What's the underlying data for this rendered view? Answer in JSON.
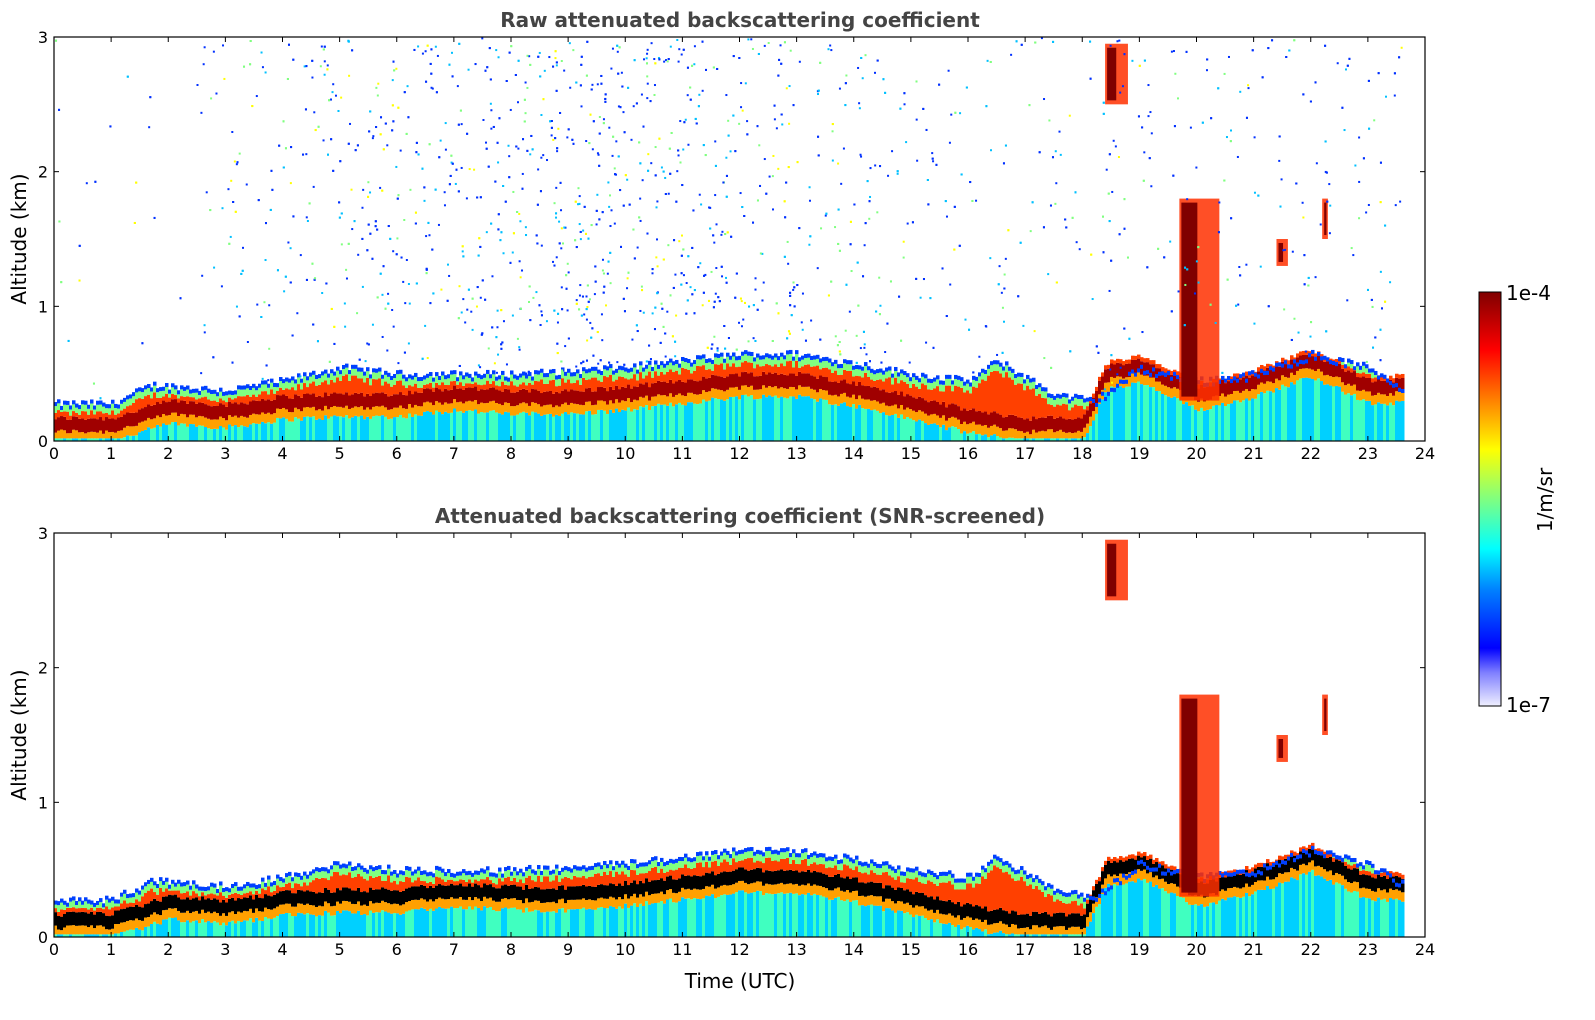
{
  "chart_data": [
    {
      "type": "heatmap",
      "title": "Raw attenuated backscattering coefficient",
      "xlabel": "",
      "ylabel": "Altitude (km)",
      "xlim": [
        0,
        24
      ],
      "ylim": [
        0,
        3
      ],
      "xticks": [
        "0",
        "1",
        "2",
        "3",
        "4",
        "5",
        "6",
        "7",
        "8",
        "9",
        "10",
        "11",
        "12",
        "13",
        "14",
        "15",
        "16",
        "17",
        "18",
        "19",
        "20",
        "21",
        "22",
        "23",
        "24"
      ],
      "yticks": [
        "0",
        "1",
        "2",
        "3"
      ],
      "boundary_layer_top_km": [
        [
          0,
          0.28
        ],
        [
          1,
          0.28
        ],
        [
          1.7,
          0.42
        ],
        [
          3,
          0.38
        ],
        [
          4,
          0.45
        ],
        [
          5,
          0.55
        ],
        [
          6,
          0.5
        ],
        [
          7,
          0.5
        ],
        [
          8,
          0.5
        ],
        [
          9,
          0.52
        ],
        [
          10,
          0.55
        ],
        [
          11,
          0.6
        ],
        [
          12,
          0.65
        ],
        [
          13,
          0.65
        ],
        [
          14,
          0.58
        ],
        [
          15,
          0.5
        ],
        [
          16,
          0.45
        ],
        [
          16.5,
          0.6
        ],
        [
          17.5,
          0.35
        ],
        [
          18.2,
          0.3
        ],
        [
          19,
          0.55
        ],
        [
          20,
          0.45
        ],
        [
          21,
          0.5
        ],
        [
          22,
          0.65
        ],
        [
          23,
          0.55
        ],
        [
          23.6,
          0.4
        ]
      ],
      "peak_layer_km": [
        [
          0,
          0.12
        ],
        [
          1,
          0.12
        ],
        [
          2,
          0.25
        ],
        [
          3,
          0.22
        ],
        [
          4,
          0.28
        ],
        [
          5,
          0.3
        ],
        [
          6,
          0.3
        ],
        [
          7,
          0.35
        ],
        [
          8,
          0.32
        ],
        [
          9,
          0.32
        ],
        [
          10,
          0.35
        ],
        [
          11,
          0.4
        ],
        [
          12,
          0.45
        ],
        [
          13,
          0.45
        ],
        [
          14,
          0.38
        ],
        [
          15,
          0.28
        ],
        [
          16,
          0.18
        ],
        [
          17,
          0.12
        ],
        [
          18,
          0.12
        ],
        [
          18.4,
          0.5
        ],
        [
          19,
          0.55
        ],
        [
          20,
          0.35
        ],
        [
          21,
          0.45
        ],
        [
          22,
          0.6
        ],
        [
          23,
          0.4
        ]
      ],
      "cloud_layers": [
        {
          "t0": 18.4,
          "t1": 18.8,
          "z0": 2.5,
          "z1": 2.95
        },
        {
          "t0": 19.7,
          "t1": 20.4,
          "z0": 0.3,
          "z1": 1.8
        },
        {
          "t0": 21.4,
          "t1": 21.6,
          "z0": 1.3,
          "z1": 1.5
        },
        {
          "t0": 22.2,
          "t1": 22.3,
          "z0": 1.5,
          "z1": 1.8
        }
      ]
    },
    {
      "type": "heatmap",
      "title": "Attenuated backscattering coefficient (SNR-screened)",
      "xlabel": "Time (UTC)",
      "ylabel": "Altitude (km)",
      "xlim": [
        0,
        24
      ],
      "ylim": [
        0,
        3
      ],
      "xticks": [
        "0",
        "1",
        "2",
        "3",
        "4",
        "5",
        "6",
        "7",
        "8",
        "9",
        "10",
        "11",
        "12",
        "13",
        "14",
        "15",
        "16",
        "17",
        "18",
        "19",
        "20",
        "21",
        "22",
        "23",
        "24"
      ],
      "yticks": [
        "0",
        "1",
        "2",
        "3"
      ]
    }
  ],
  "colorbar": {
    "label": "1/m/sr",
    "max_label": "1e-4",
    "min_label": "1e-7",
    "colors": [
      "#e8e8ff",
      "#b0b0ff",
      "#6060ff",
      "#0000ff",
      "#0040ff",
      "#0080ff",
      "#00c0ff",
      "#00ffff",
      "#40ffc0",
      "#80ff80",
      "#c0ff40",
      "#ffff00",
      "#ffc000",
      "#ff8000",
      "#ff4000",
      "#e00000",
      "#a00000",
      "#700000"
    ]
  }
}
